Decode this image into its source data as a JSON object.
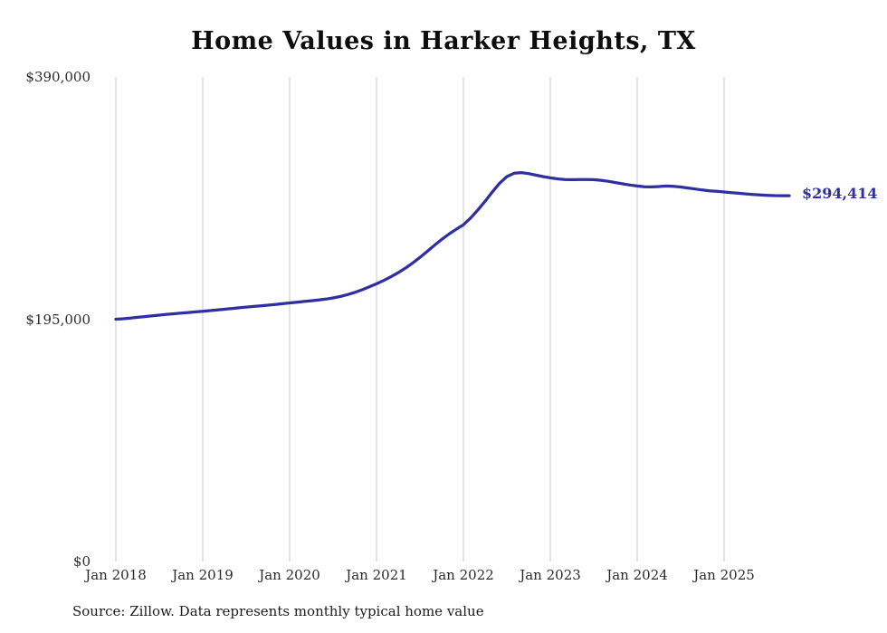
{
  "title": "Home Values in Harker Heights, TX",
  "source": "Source: Zillow. Data represents monthly typical home value",
  "chart_data": {
    "type": "line",
    "title": "Home Values in Harker Heights, TX",
    "ylabel": "",
    "xlabel": "",
    "ylim": [
      0,
      390000
    ],
    "grid": "vertical-only",
    "line_color": "#2f2fa2",
    "gridline_color": "#cacaca",
    "y_ticks": [
      {
        "value": 390000,
        "label": "$390,000"
      },
      {
        "value": 195000,
        "label": "$195,000"
      },
      {
        "value": 0,
        "label": "$0"
      }
    ],
    "x_tick_labels": [
      "Jan 2018",
      "Jan 2019",
      "Jan 2020",
      "Jan 2021",
      "Jan 2022",
      "Jan 2023",
      "Jan 2024",
      "Jan 2025"
    ],
    "start_month": "2018-01",
    "end_month": "2025-10",
    "end_label": "$294,414",
    "end_value": 294414,
    "values": [
      195000,
      195400,
      195900,
      196500,
      197100,
      197700,
      198300,
      198900,
      199400,
      199900,
      200400,
      200900,
      201400,
      201900,
      202400,
      203000,
      203600,
      204200,
      204800,
      205300,
      205800,
      206300,
      206900,
      207500,
      208100,
      208700,
      209300,
      209900,
      210500,
      211200,
      212100,
      213300,
      214800,
      216600,
      218700,
      221000,
      223500,
      226200,
      229200,
      232500,
      236200,
      240300,
      244800,
      249600,
      254500,
      259200,
      263500,
      267400,
      271000,
      276500,
      283000,
      290000,
      297500,
      304500,
      309800,
      312500,
      313000,
      312200,
      311000,
      309800,
      308800,
      308000,
      307500,
      307300,
      307400,
      307500,
      307300,
      306800,
      306000,
      305000,
      304000,
      303000,
      302200,
      301600,
      301500,
      301800,
      302200,
      302000,
      301400,
      300600,
      299800,
      299000,
      298400,
      297900,
      297400,
      296900,
      296400,
      295900,
      295400,
      295000,
      294700,
      294500,
      294400,
      294414
    ]
  }
}
